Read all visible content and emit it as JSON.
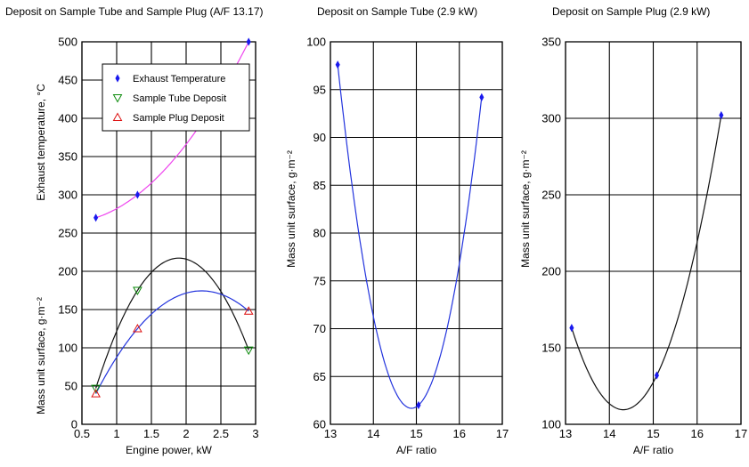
{
  "colors": {
    "exhaust": "#ee44ee",
    "tube": "#111111",
    "plug": "#2233dd",
    "marker_blue": "#1a1aee",
    "marker_green": "#0a8a0a",
    "marker_red": "#dd1111",
    "grid": "#000000"
  },
  "chart_data": [
    {
      "type": "scatter",
      "title": "Deposit on Sample Tube and Sample Plug (A/F 13.17)",
      "xlabel": "Engine power, kW",
      "ylabel_upper": "Exhaust temperature, °C",
      "ylabel_lower": "Mass unit surface, g·m⁻²",
      "xlim": [
        0.5,
        3
      ],
      "ylim": [
        0,
        500
      ],
      "xticks": [
        "0.5",
        "1",
        "1.5",
        "2",
        "2.5",
        "3"
      ],
      "yticks": [
        "0",
        "50",
        "100",
        "150",
        "200",
        "250",
        "300",
        "350",
        "400",
        "450",
        "500"
      ],
      "grid": true,
      "legend_position": "top-left",
      "series": [
        {
          "name": "Exhaust Temperature",
          "marker": "diamond",
          "x": [
            0.7,
            1.3,
            2.9
          ],
          "y": [
            270,
            300,
            500
          ]
        },
        {
          "name": "Sample Tube Deposit",
          "marker": "triangle-down",
          "x": [
            0.7,
            1.3,
            2.9
          ],
          "y": [
            47,
            175,
            97
          ]
        },
        {
          "name": "Sample Plug Deposit",
          "marker": "triangle-up",
          "x": [
            0.7,
            1.3,
            2.9
          ],
          "y": [
            40,
            125,
            148
          ]
        }
      ]
    },
    {
      "type": "scatter",
      "title": "Deposit on Sample Tube (2.9 kW)",
      "xlabel": "A/F ratio",
      "ylabel": "Mass unit surface, g·m⁻²",
      "xlim": [
        13,
        17
      ],
      "ylim": [
        60,
        100
      ],
      "xticks": [
        "13",
        "14",
        "15",
        "16",
        "17"
      ],
      "yticks": [
        "60",
        "65",
        "70",
        "75",
        "80",
        "85",
        "90",
        "95",
        "100"
      ],
      "grid": true,
      "series": [
        {
          "marker": "diamond",
          "x": [
            13.17,
            15.05,
            16.52
          ],
          "y": [
            97.6,
            62,
            94.2
          ]
        }
      ]
    },
    {
      "type": "scatter",
      "title": "Deposit on Sample Plug (2.9 kW)",
      "xlabel": "A/F ratio",
      "ylabel": "Mass unit surface, g·m⁻²",
      "xlim": [
        13,
        17
      ],
      "ylim": [
        100,
        350
      ],
      "xticks": [
        "13",
        "14",
        "15",
        "16",
        "17"
      ],
      "yticks": [
        "100",
        "150",
        "200",
        "250",
        "300",
        "350"
      ],
      "grid": true,
      "series": [
        {
          "marker": "diamond",
          "x": [
            13.14,
            15.08,
            16.55
          ],
          "y": [
            163,
            132,
            302
          ]
        }
      ]
    }
  ]
}
